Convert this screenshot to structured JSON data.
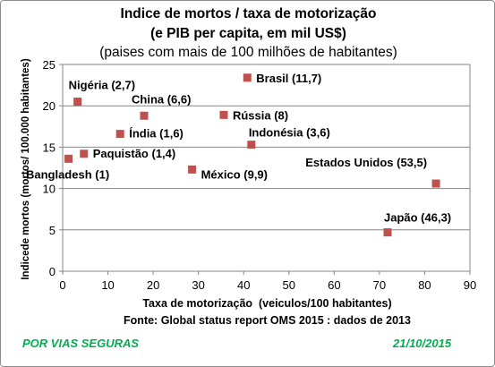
{
  "chart_data": {
    "type": "scatter",
    "title": "Indice de mortos / taxa de motorização",
    "title_line2": "(e PIB per capita, em mil US$)",
    "subtitle": "(paises com mais de 100 milhões de habitantes)",
    "xlabel": "Taxa de motorização  (veiculos/100 habitantes)",
    "ylabel": "Indicede mortos (mortos/ 100.000 habitantes)",
    "source": "Fonte: Global status report OMS 2015 : dados de 2013",
    "xlim": [
      0,
      90
    ],
    "ylim": [
      0,
      25
    ],
    "xticks": [
      0,
      10,
      20,
      30,
      40,
      50,
      60,
      70,
      80,
      90
    ],
    "yticks": [
      0,
      5,
      10,
      15,
      20,
      25
    ],
    "grid": true,
    "marker_color": "#c0504d",
    "points": [
      {
        "label": "Nigéria (2,7)",
        "x": 3.3,
        "y": 20.5
      },
      {
        "label": "China (6,6)",
        "x": 18.0,
        "y": 18.8
      },
      {
        "label": "Índia (1,6)",
        "x": 12.7,
        "y": 16.6
      },
      {
        "label": "Paquistão (1,4)",
        "x": 4.7,
        "y": 14.2
      },
      {
        "label": "Bangladesh (1)",
        "x": 1.3,
        "y": 13.6
      },
      {
        "label": "México (9,9)",
        "x": 28.6,
        "y": 12.3
      },
      {
        "label": "Brasil (11,7)",
        "x": 40.8,
        "y": 23.4
      },
      {
        "label": "Rússia (8)",
        "x": 35.6,
        "y": 18.9
      },
      {
        "label": "Indonésia (3,6)",
        "x": 41.7,
        "y": 15.3
      },
      {
        "label": "Estados Unidos (53,5)",
        "x": 82.5,
        "y": 10.6
      },
      {
        "label": "Japão (46,3)",
        "x": 71.8,
        "y": 4.7
      }
    ]
  },
  "footer": {
    "left": "POR VIAS SEGURAS",
    "right": "21/10/2015",
    "color": "#00b050"
  }
}
